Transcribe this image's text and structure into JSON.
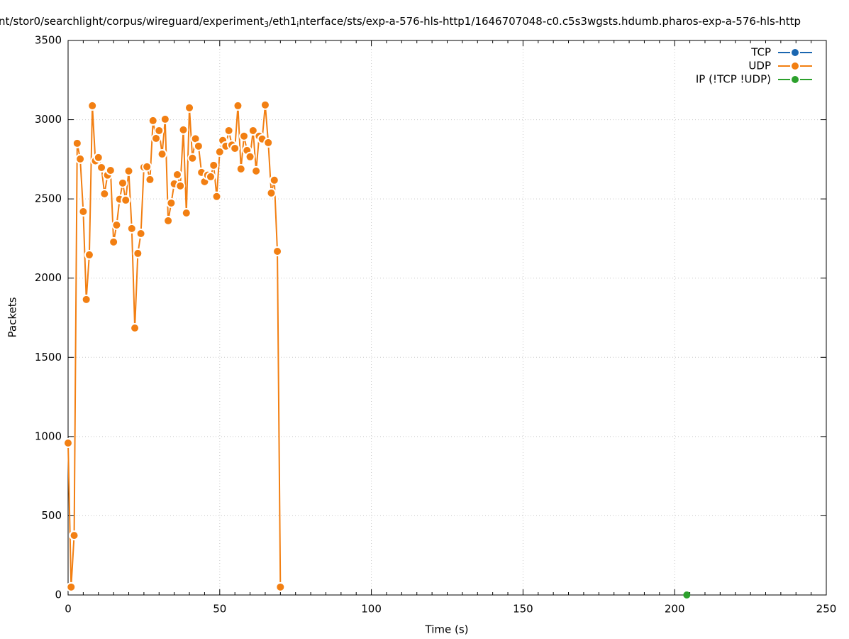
{
  "chart_data": {
    "type": "line",
    "title": [
      {
        "text": "nt/stor0/searchlight/corpus/wireguard/experiment",
        "subscript": false
      },
      {
        "text": "3",
        "subscript": true
      },
      {
        "text": "/eth1",
        "subscript": false
      },
      {
        "text": "i",
        "subscript": true
      },
      {
        "text": "nterface/sts/exp-a-576-hls-http1/1646707048-c0.c5s3wgsts.hdumb.pharos-exp-a-576-hls-http",
        "subscript": false
      }
    ],
    "x_label": "Time (s)",
    "y_label": "Packets",
    "xlim": [
      0,
      250
    ],
    "xticks": [
      0,
      50,
      100,
      150,
      200,
      250
    ],
    "ylim": [
      0,
      3500
    ],
    "yticks": [
      0,
      500,
      1000,
      1500,
      2000,
      2500,
      3000,
      3500
    ],
    "grid": true,
    "legend": "top-right",
    "series": [
      {
        "name": "TCP",
        "color": "#1a66b0",
        "x": [],
        "values": []
      },
      {
        "name": "UDP",
        "color": "#f27f12",
        "x": [
          0,
          1,
          2,
          3,
          4,
          5,
          6,
          7,
          8,
          9,
          10,
          11,
          12,
          13,
          14,
          15,
          16,
          17,
          18,
          19,
          20,
          21,
          22,
          23,
          24,
          25,
          26,
          27,
          28,
          29,
          30,
          31,
          32,
          33,
          34,
          35,
          36,
          37,
          38,
          39,
          40,
          41,
          42,
          43,
          44,
          45,
          46,
          47,
          48,
          49,
          50,
          51,
          52,
          53,
          54,
          55,
          56,
          57,
          58,
          59,
          60,
          61,
          62,
          63,
          64,
          65,
          66,
          67,
          68,
          69,
          70
        ],
        "values": [
          959,
          50,
          376,
          2851,
          2752,
          2420,
          1865,
          2147,
          3088,
          2740,
          2761,
          2698,
          2532,
          2650,
          2680,
          2228,
          2335,
          2498,
          2600,
          2492,
          2676,
          2313,
          1685,
          2156,
          2281,
          2700,
          2703,
          2622,
          2994,
          2882,
          2931,
          2783,
          3003,
          2362,
          2474,
          2595,
          2653,
          2582,
          2936,
          2411,
          3075,
          2757,
          2880,
          2833,
          2667,
          2609,
          2650,
          2640,
          2712,
          2515,
          2797,
          2869,
          2833,
          2931,
          2840,
          2819,
          3088,
          2689,
          2896,
          2806,
          2766,
          2931,
          2676,
          2896,
          2878,
          3093,
          2855,
          2537,
          2618,
          2169,
          50
        ]
      },
      {
        "name": "IP (!TCP  !UDP)",
        "color": "#2ca02c",
        "x": [
          204
        ],
        "values": [
          0
        ]
      }
    ]
  }
}
